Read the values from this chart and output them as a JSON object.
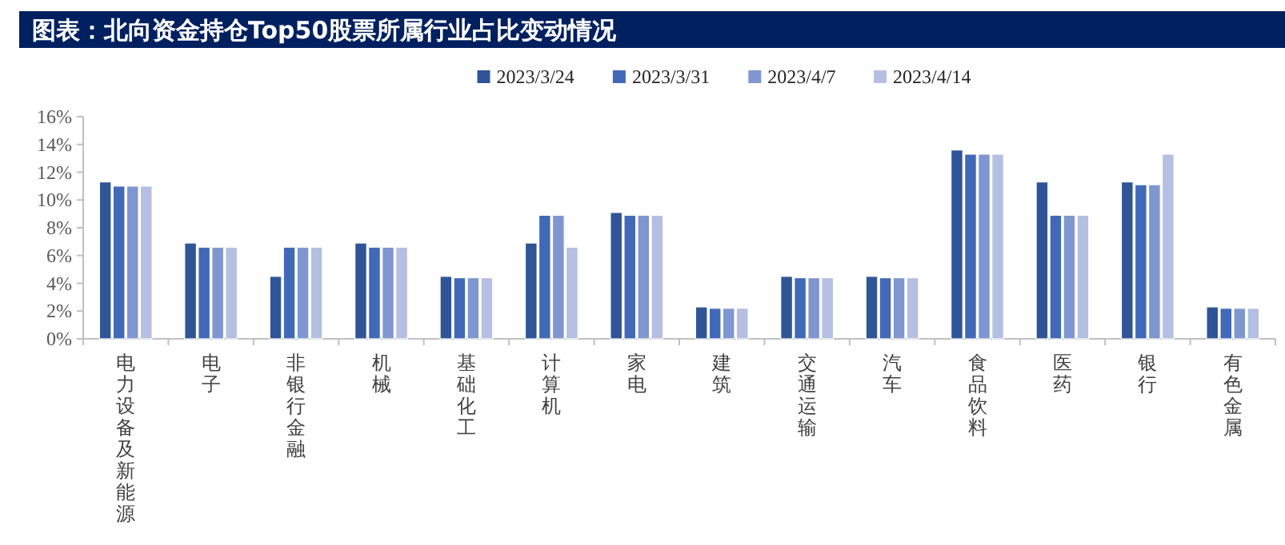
{
  "chart_data": {
    "type": "bar",
    "title": "图表：北向资金持仓Top50股票所属行业占比变动情况",
    "categories": [
      "电力设备及新能源",
      "电子",
      "非银行金融",
      "机械",
      "基础化工",
      "计算机",
      "家电",
      "建筑",
      "交通运输",
      "汽车",
      "食品饮料",
      "医药",
      "银行",
      "有色金属"
    ],
    "series": [
      {
        "name": "2023/3/24",
        "color": "#2f5597",
        "values": [
          11.3,
          6.9,
          4.5,
          6.9,
          4.5,
          6.9,
          9.1,
          2.3,
          4.5,
          4.5,
          13.6,
          11.3,
          11.3,
          2.3
        ]
      },
      {
        "name": "2023/3/31",
        "color": "#4169b8",
        "values": [
          11.0,
          6.6,
          6.6,
          6.6,
          4.4,
          8.9,
          8.9,
          2.2,
          4.4,
          4.4,
          13.3,
          8.9,
          11.1,
          2.2
        ]
      },
      {
        "name": "2023/4/7",
        "color": "#7f96d0",
        "values": [
          11.0,
          6.6,
          6.6,
          6.6,
          4.4,
          8.9,
          8.9,
          2.2,
          4.4,
          4.4,
          13.3,
          8.9,
          11.1,
          2.2
        ]
      },
      {
        "name": "2023/4/14",
        "color": "#b4bfe2",
        "values": [
          11.0,
          6.6,
          6.6,
          6.6,
          4.4,
          6.6,
          8.9,
          2.2,
          4.4,
          4.4,
          13.3,
          8.9,
          13.3,
          2.2
        ]
      }
    ],
    "ylim": [
      0,
      16
    ],
    "yticks": [
      {
        "value": 0,
        "label": "0%"
      },
      {
        "value": 2,
        "label": "2%"
      },
      {
        "value": 4,
        "label": "4%"
      },
      {
        "value": 6,
        "label": "6%"
      },
      {
        "value": 8,
        "label": "8%"
      },
      {
        "value": 10,
        "label": "10%"
      },
      {
        "value": 12,
        "label": "12%"
      },
      {
        "value": 14,
        "label": "14%"
      },
      {
        "value": 16,
        "label": "16%"
      }
    ],
    "legend": "top"
  }
}
